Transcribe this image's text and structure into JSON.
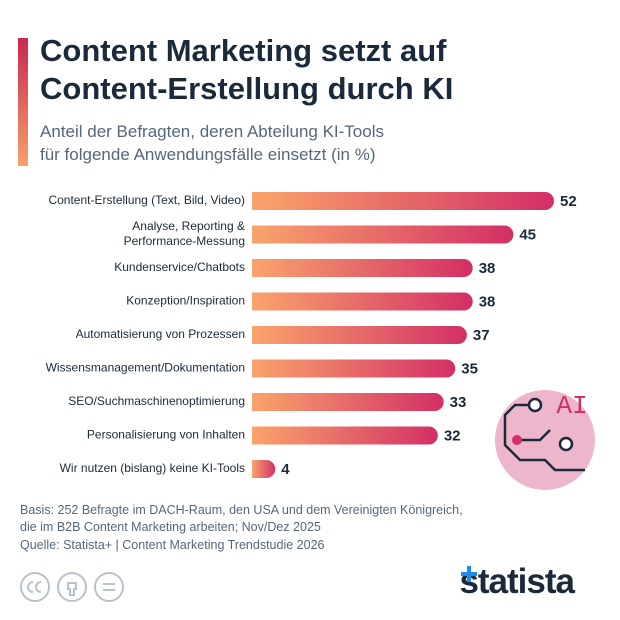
{
  "chart_data": {
    "type": "bar",
    "orientation": "horizontal",
    "title": "Content Marketing setzt auf\nContent-Erstellung durch KI",
    "subtitle": "Anteil der Befragten, deren Abteilung KI-Tools\nfür folgende Anwendungsfälle einsetzt (in %)",
    "categories": [
      "Content-Erstellung (Text, Bild, Video)",
      "Analyse, Reporting &\nPerformance-Messung",
      "Kundenservice/Chatbots",
      "Konzeption/Inspiration",
      "Automatisierung von Prozessen",
      "Wissensmanagement/Dokumentation",
      "SEO/Suchmaschinenoptimierung",
      "Personalisierung von Inhalten",
      "Wir nutzen (bislang) keine KI-Tools"
    ],
    "values": [
      52,
      45,
      38,
      38,
      37,
      35,
      33,
      32,
      4
    ],
    "color_start": "#f9a46b",
    "color_end": "#d32f66",
    "note": "Basis: 252 Befragte im DACH-Raum, den USA und dem Vereinigten Königreich,\ndie im B2B Content Marketing arbeiten; Nov/Dez 2025",
    "source": "Quelle: Statista+ | Content Marketing Trendstudie 2026",
    "icon_text": "AI",
    "brand": "statista"
  }
}
